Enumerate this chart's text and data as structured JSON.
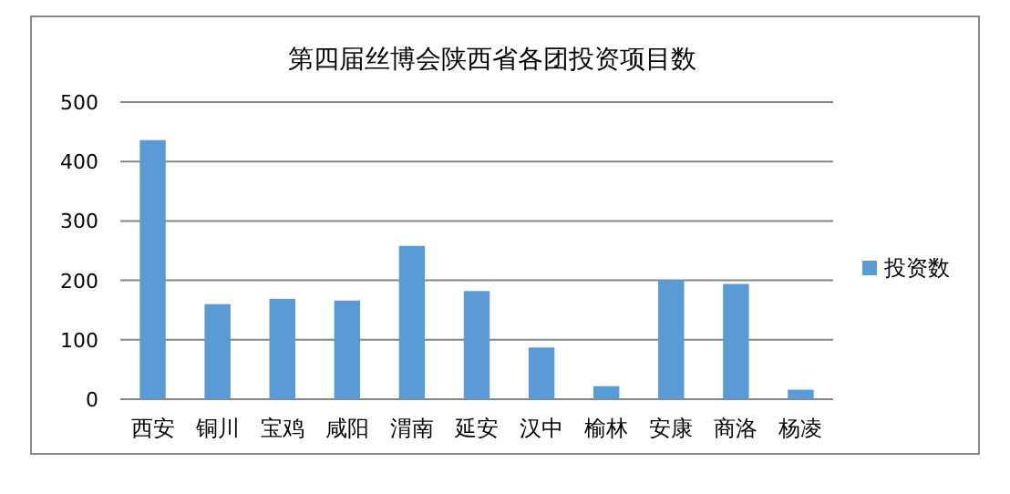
{
  "chart_data": {
    "type": "bar",
    "title": "第四届丝博会陕西省各团投资项目数",
    "categories": [
      "西安",
      "铜川",
      "宝鸡",
      "咸阳",
      "渭南",
      "延安",
      "汉中",
      "榆林",
      "安康",
      "商洛",
      "杨凌"
    ],
    "series": [
      {
        "name": "投资数",
        "color": "#5b9bd5",
        "values": [
          436,
          160,
          169,
          166,
          258,
          182,
          87,
          22,
          200,
          194,
          16
        ]
      }
    ],
    "ylim": [
      0,
      500
    ],
    "yticks": [
      0,
      100,
      200,
      300,
      400,
      500
    ],
    "grid": "y",
    "legend": "right"
  }
}
